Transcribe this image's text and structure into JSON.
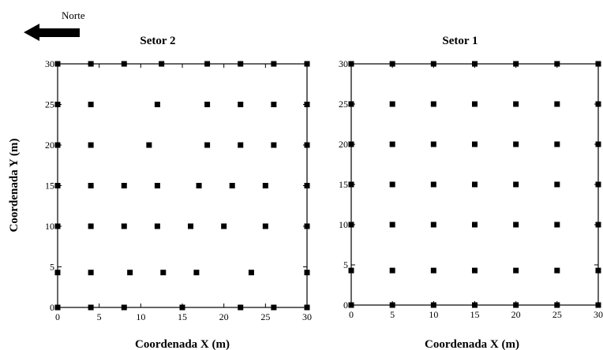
{
  "north_label": "Norte",
  "shared_ylabel": "Coordenada Y  (m)",
  "chart_data": [
    {
      "type": "scatter",
      "title": "Setor 2",
      "xlabel": "Coordenada X (m)",
      "ylabel": "Coordenada Y  (m)",
      "xlim": [
        0,
        30
      ],
      "ylim": [
        0,
        30
      ],
      "xticks": [
        0,
        5,
        10,
        15,
        20,
        25,
        30
      ],
      "yticks": [
        0,
        5,
        10,
        15,
        20,
        25,
        30
      ],
      "grid": false,
      "marker": "square",
      "points": [
        [
          0,
          30
        ],
        [
          4,
          30
        ],
        [
          8,
          30
        ],
        [
          12.5,
          30
        ],
        [
          18,
          30
        ],
        [
          22,
          30
        ],
        [
          26,
          30
        ],
        [
          30,
          30
        ],
        [
          0,
          25
        ],
        [
          4,
          25
        ],
        [
          12,
          25
        ],
        [
          18,
          25
        ],
        [
          22,
          25
        ],
        [
          26,
          25
        ],
        [
          30,
          25
        ],
        [
          0,
          20
        ],
        [
          4,
          20
        ],
        [
          11,
          20
        ],
        [
          18,
          20
        ],
        [
          22,
          20
        ],
        [
          26,
          20
        ],
        [
          30,
          20
        ],
        [
          0,
          15
        ],
        [
          4,
          15
        ],
        [
          8,
          15
        ],
        [
          12,
          15
        ],
        [
          17,
          15
        ],
        [
          21,
          15
        ],
        [
          25,
          15
        ],
        [
          30,
          15
        ],
        [
          0,
          10
        ],
        [
          4,
          10
        ],
        [
          8,
          10
        ],
        [
          12,
          10
        ],
        [
          16,
          10
        ],
        [
          20,
          10
        ],
        [
          25,
          10
        ],
        [
          30,
          10
        ],
        [
          0,
          4.3
        ],
        [
          4,
          4.3
        ],
        [
          8.7,
          4.3
        ],
        [
          12.7,
          4.3
        ],
        [
          16.7,
          4.3
        ],
        [
          23.3,
          4.3
        ],
        [
          30,
          4.3
        ],
        [
          0,
          0
        ],
        [
          4,
          0
        ],
        [
          8,
          0
        ],
        [
          15,
          0
        ],
        [
          22,
          0
        ],
        [
          26,
          0
        ],
        [
          30,
          0
        ]
      ]
    },
    {
      "type": "scatter",
      "title": "Setor 1",
      "xlabel": "Coordenada X (m)",
      "ylabel": "",
      "xlim": [
        0,
        30
      ],
      "ylim": [
        0,
        30
      ],
      "xticks": [
        0,
        5,
        10,
        15,
        20,
        25,
        30
      ],
      "yticks": [
        0,
        5,
        10,
        15,
        20,
        25,
        30
      ],
      "grid": false,
      "marker": "square",
      "points": [
        [
          0,
          30
        ],
        [
          5,
          30
        ],
        [
          10,
          30
        ],
        [
          15,
          30
        ],
        [
          20,
          30
        ],
        [
          25,
          30
        ],
        [
          30,
          30
        ],
        [
          0,
          25
        ],
        [
          5,
          25
        ],
        [
          10,
          25
        ],
        [
          15,
          25
        ],
        [
          20,
          25
        ],
        [
          25,
          25
        ],
        [
          30,
          25
        ],
        [
          0,
          20
        ],
        [
          5,
          20
        ],
        [
          10,
          20
        ],
        [
          15,
          20
        ],
        [
          20,
          20
        ],
        [
          25,
          20
        ],
        [
          30,
          20
        ],
        [
          0,
          15
        ],
        [
          5,
          15
        ],
        [
          10,
          15
        ],
        [
          15,
          15
        ],
        [
          20,
          15
        ],
        [
          25,
          15
        ],
        [
          30,
          15
        ],
        [
          0,
          10
        ],
        [
          5,
          10
        ],
        [
          10,
          10
        ],
        [
          15,
          10
        ],
        [
          20,
          10
        ],
        [
          25,
          10
        ],
        [
          30,
          10
        ],
        [
          0,
          4.3
        ],
        [
          5,
          4.3
        ],
        [
          10,
          4.3
        ],
        [
          15,
          4.3
        ],
        [
          20,
          4.3
        ],
        [
          25,
          4.3
        ],
        [
          30,
          4.3
        ],
        [
          0,
          0
        ],
        [
          5,
          0
        ],
        [
          10,
          0
        ],
        [
          15,
          0
        ],
        [
          20,
          0
        ],
        [
          25,
          0
        ],
        [
          30,
          0
        ]
      ]
    }
  ]
}
